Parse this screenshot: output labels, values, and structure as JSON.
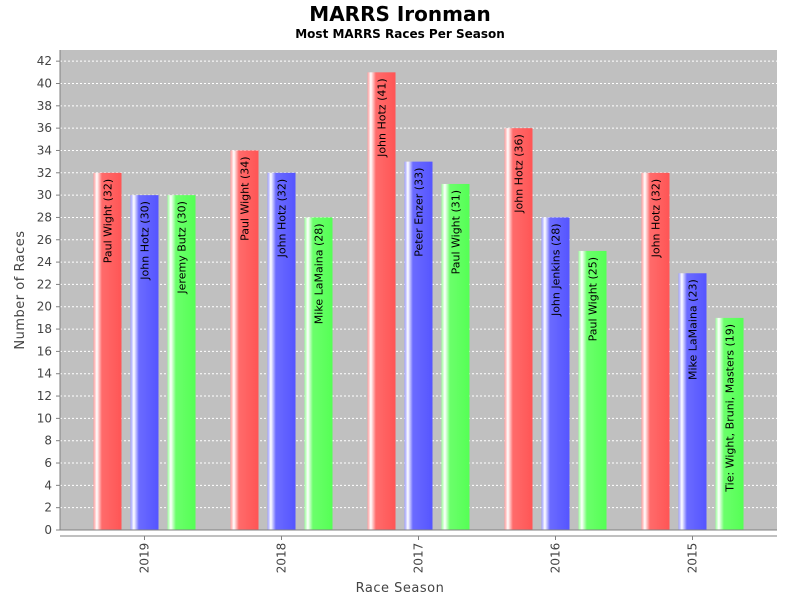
{
  "chart_data": {
    "type": "bar",
    "title": "MARRS Ironman",
    "subtitle": "Most MARRS Races Per Season",
    "xlabel": "Race Season",
    "ylabel": "Number of Races",
    "ylim": [
      0,
      43
    ],
    "ytick_step": 2,
    "grid": true,
    "categories": [
      "2019",
      "2018",
      "2017",
      "2016",
      "2015"
    ],
    "series": [
      {
        "color": "#ff5555",
        "values": [
          32,
          34,
          41,
          36,
          32
        ],
        "labels": [
          "Paul Wight (32)",
          "Paul Wight (34)",
          "John Hotz (41)",
          "John Hotz (36)",
          "John Hotz (32)"
        ]
      },
      {
        "color": "#5555ff",
        "values": [
          30,
          32,
          33,
          28,
          23
        ],
        "labels": [
          "John Hotz (30)",
          "John Hotz (32)",
          "Peter Enzer (33)",
          "John Jenkins (28)",
          "Mike LaMaina (23)"
        ]
      },
      {
        "color": "#55ff55",
        "values": [
          30,
          28,
          31,
          25,
          19
        ],
        "labels": [
          "Jeremy Butz (30)",
          "Mike LaMaina (28)",
          "Paul Wight (31)",
          "Paul Wight (25)",
          "Tie: Wight, Bruni, Masters (19)"
        ]
      }
    ]
  }
}
